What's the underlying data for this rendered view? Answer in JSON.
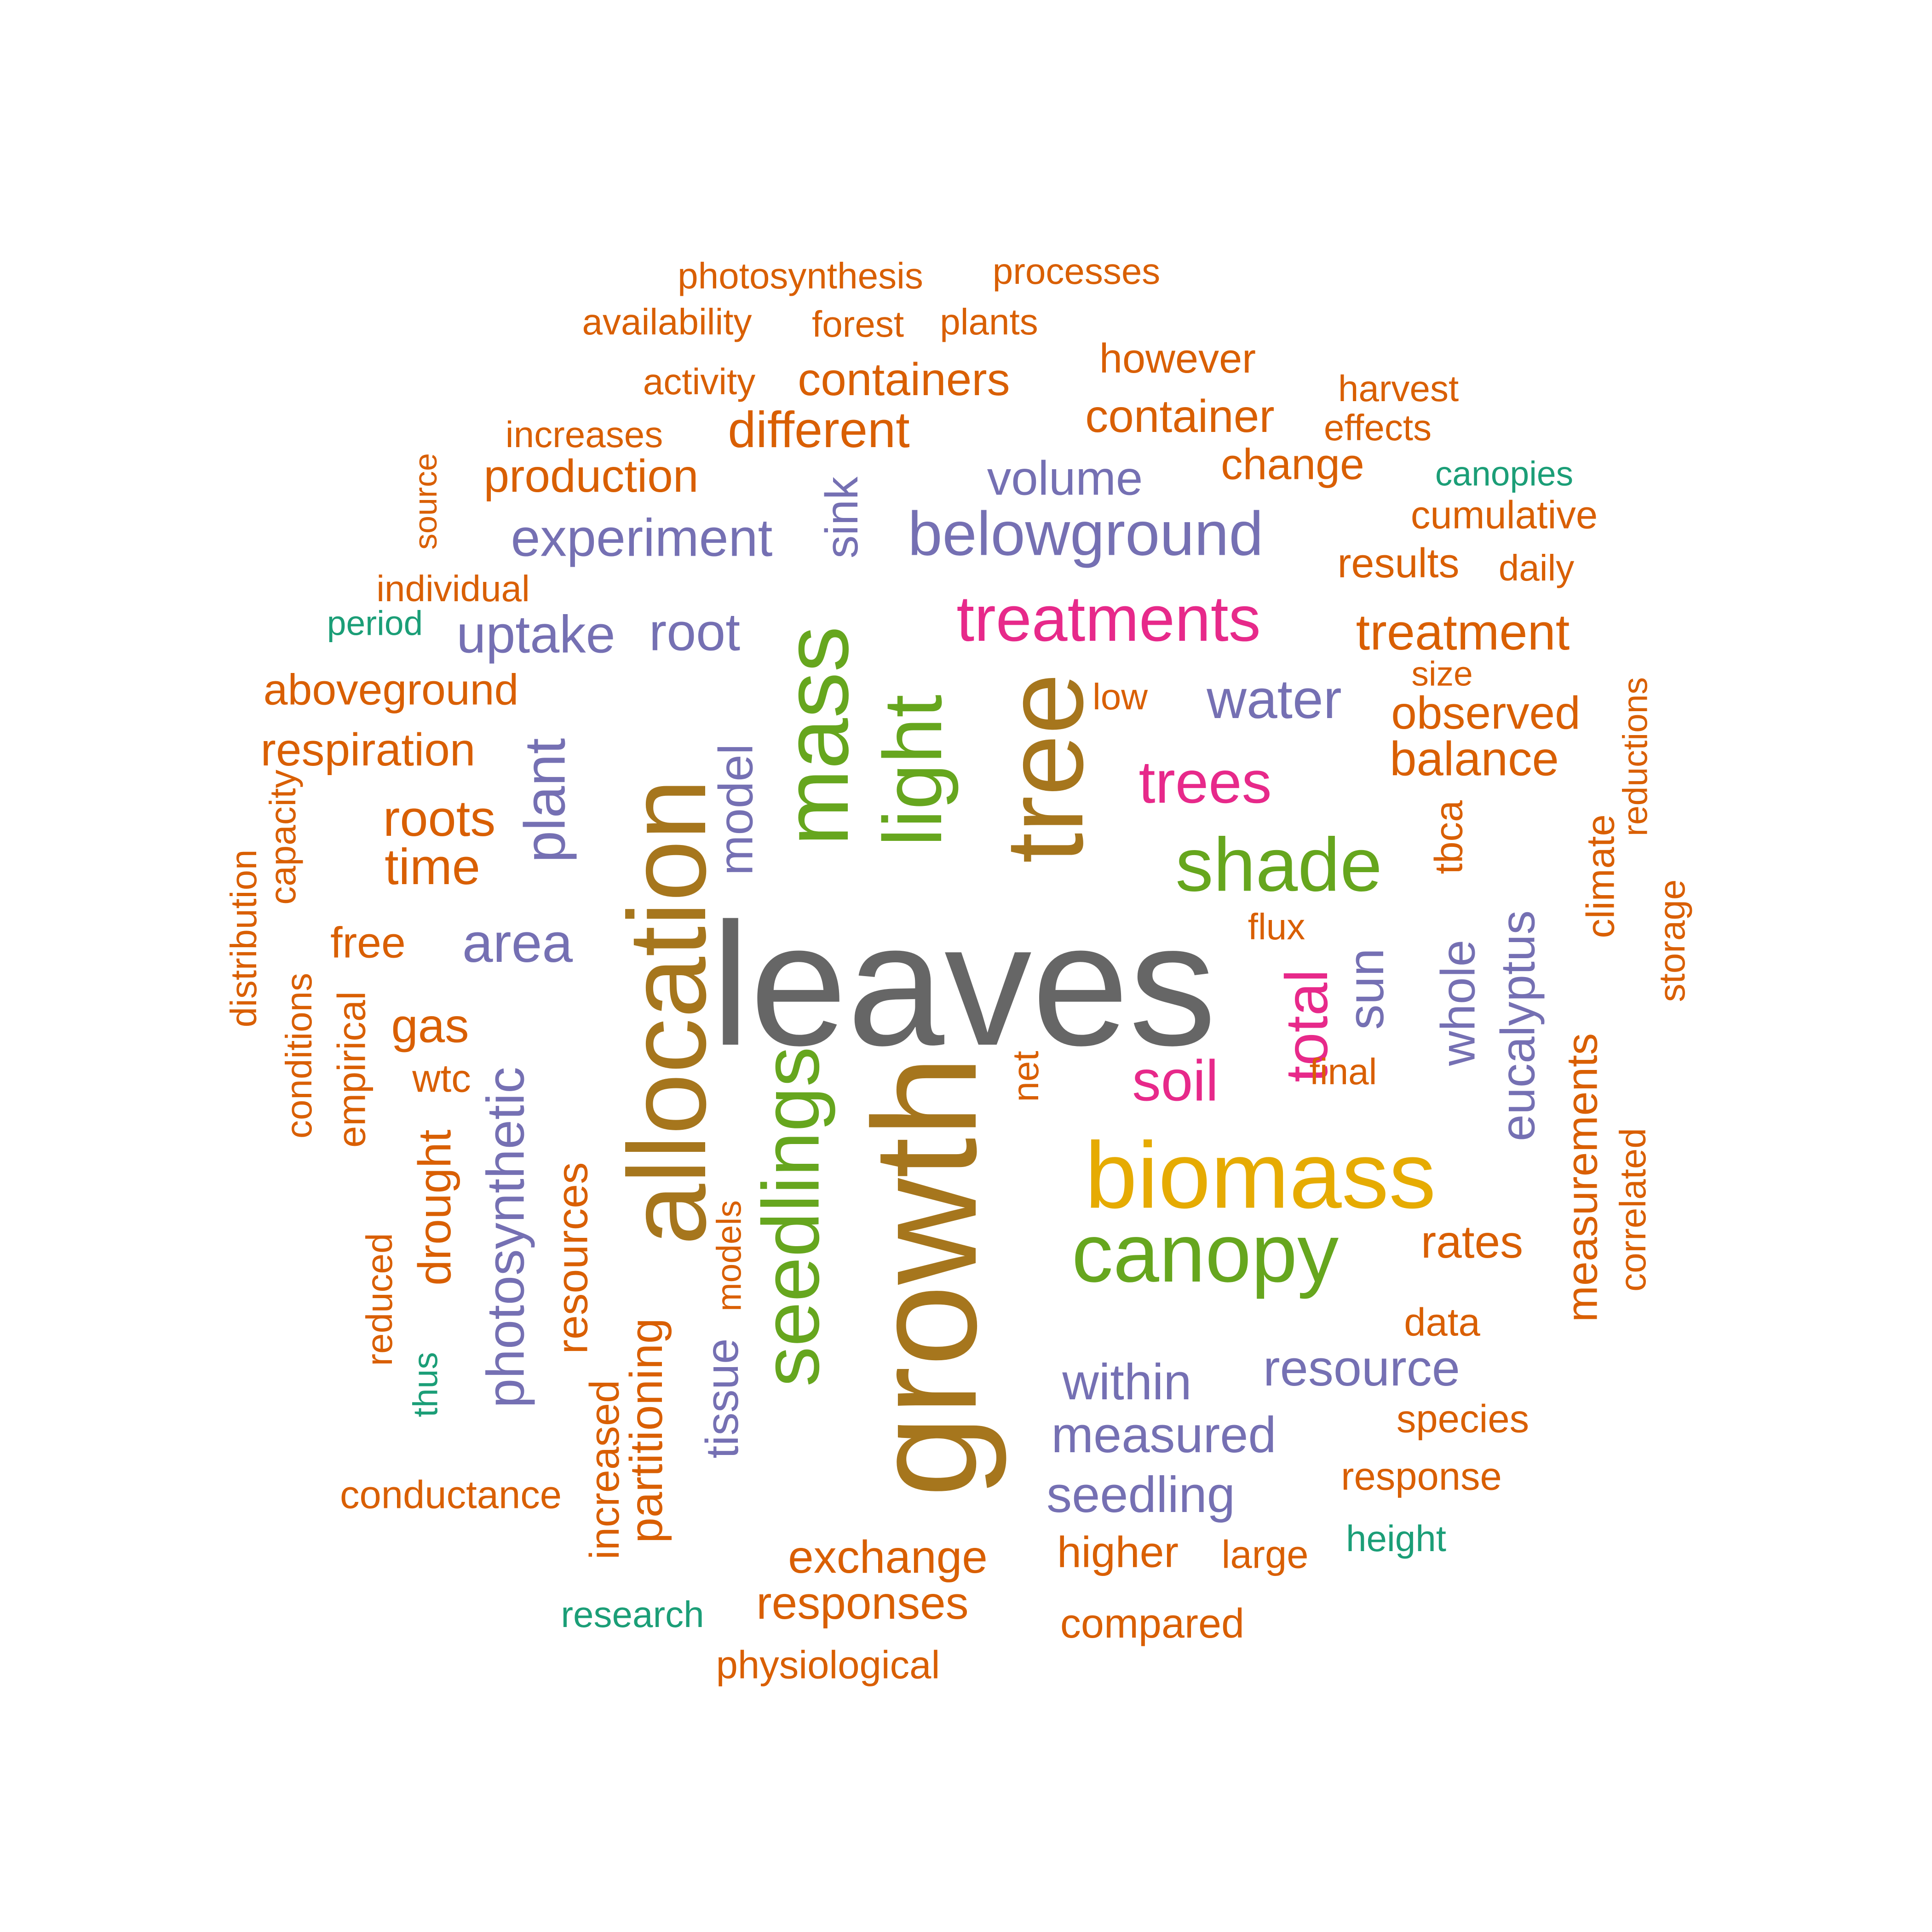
{
  "palette": {
    "gray": "#666666",
    "olive": "#A6761D",
    "green": "#66A61E",
    "gold": "#E6AB02",
    "pink": "#E7298A",
    "purple": "#7570B3",
    "orange": "#D95F02",
    "teal": "#1B9E77"
  },
  "words": [
    {
      "text": "leaves",
      "color": "gray"
    },
    {
      "text": "growth",
      "color": "olive"
    },
    {
      "text": "allocation",
      "color": "olive"
    },
    {
      "text": "tree",
      "color": "olive"
    },
    {
      "text": "mass",
      "color": "green"
    },
    {
      "text": "light",
      "color": "green"
    },
    {
      "text": "seedlings",
      "color": "green"
    },
    {
      "text": "biomass",
      "color": "gold"
    },
    {
      "text": "canopy",
      "color": "green"
    },
    {
      "text": "shade",
      "color": "green"
    },
    {
      "text": "treatments",
      "color": "pink"
    },
    {
      "text": "trees",
      "color": "pink"
    },
    {
      "text": "soil",
      "color": "pink"
    },
    {
      "text": "total",
      "color": "pink"
    },
    {
      "text": "belowground",
      "color": "purple"
    },
    {
      "text": "experiment",
      "color": "purple"
    },
    {
      "text": "uptake",
      "color": "purple"
    },
    {
      "text": "root",
      "color": "purple"
    },
    {
      "text": "water",
      "color": "purple"
    },
    {
      "text": "volume",
      "color": "purple"
    },
    {
      "text": "sink",
      "color": "purple"
    },
    {
      "text": "plant",
      "color": "purple"
    },
    {
      "text": "area",
      "color": "purple"
    },
    {
      "text": "photosynthetic",
      "color": "purple"
    },
    {
      "text": "model",
      "color": "purple"
    },
    {
      "text": "tissue",
      "color": "purple"
    },
    {
      "text": "sun",
      "color": "purple"
    },
    {
      "text": "whole",
      "color": "purple"
    },
    {
      "text": "eucalyptus",
      "color": "purple"
    },
    {
      "text": "within",
      "color": "purple"
    },
    {
      "text": "resource",
      "color": "purple"
    },
    {
      "text": "measured",
      "color": "purple"
    },
    {
      "text": "seedling",
      "color": "purple"
    },
    {
      "text": "photosynthesis",
      "color": "orange"
    },
    {
      "text": "processes",
      "color": "orange"
    },
    {
      "text": "availability",
      "color": "orange"
    },
    {
      "text": "forest",
      "color": "orange"
    },
    {
      "text": "plants",
      "color": "orange"
    },
    {
      "text": "activity",
      "color": "orange"
    },
    {
      "text": "containers",
      "color": "orange"
    },
    {
      "text": "however",
      "color": "orange"
    },
    {
      "text": "harvest",
      "color": "orange"
    },
    {
      "text": "increases",
      "color": "orange"
    },
    {
      "text": "different",
      "color": "orange"
    },
    {
      "text": "container",
      "color": "orange"
    },
    {
      "text": "effects",
      "color": "orange"
    },
    {
      "text": "production",
      "color": "orange"
    },
    {
      "text": "change",
      "color": "orange"
    },
    {
      "text": "canopies",
      "color": "teal"
    },
    {
      "text": "source",
      "color": "orange"
    },
    {
      "text": "cumulative",
      "color": "orange"
    },
    {
      "text": "results",
      "color": "orange"
    },
    {
      "text": "daily",
      "color": "orange"
    },
    {
      "text": "individual",
      "color": "orange"
    },
    {
      "text": "period",
      "color": "teal"
    },
    {
      "text": "treatment",
      "color": "orange"
    },
    {
      "text": "aboveground",
      "color": "orange"
    },
    {
      "text": "size",
      "color": "orange"
    },
    {
      "text": "low",
      "color": "orange"
    },
    {
      "text": "observed",
      "color": "orange"
    },
    {
      "text": "respiration",
      "color": "orange"
    },
    {
      "text": "balance",
      "color": "orange"
    },
    {
      "text": "reductions",
      "color": "orange"
    },
    {
      "text": "capacity",
      "color": "orange"
    },
    {
      "text": "roots",
      "color": "orange"
    },
    {
      "text": "tbca",
      "color": "orange"
    },
    {
      "text": "climate",
      "color": "orange"
    },
    {
      "text": "distribution",
      "color": "orange"
    },
    {
      "text": "time",
      "color": "orange"
    },
    {
      "text": "storage",
      "color": "orange"
    },
    {
      "text": "flux",
      "color": "orange"
    },
    {
      "text": "free",
      "color": "orange"
    },
    {
      "text": "conditions",
      "color": "orange"
    },
    {
      "text": "empirical",
      "color": "orange"
    },
    {
      "text": "gas",
      "color": "orange"
    },
    {
      "text": "measurements",
      "color": "orange"
    },
    {
      "text": "wtc",
      "color": "orange"
    },
    {
      "text": "net",
      "color": "orange"
    },
    {
      "text": "final",
      "color": "orange"
    },
    {
      "text": "correlated",
      "color": "orange"
    },
    {
      "text": "drought",
      "color": "orange"
    },
    {
      "text": "resources",
      "color": "orange"
    },
    {
      "text": "reduced",
      "color": "orange"
    },
    {
      "text": "models",
      "color": "orange"
    },
    {
      "text": "rates",
      "color": "orange"
    },
    {
      "text": "partitioning",
      "color": "orange"
    },
    {
      "text": "data",
      "color": "orange"
    },
    {
      "text": "thus",
      "color": "teal"
    },
    {
      "text": "increased",
      "color": "orange"
    },
    {
      "text": "species",
      "color": "orange"
    },
    {
      "text": "conductance",
      "color": "orange"
    },
    {
      "text": "response",
      "color": "orange"
    },
    {
      "text": "exchange",
      "color": "orange"
    },
    {
      "text": "higher",
      "color": "orange"
    },
    {
      "text": "large",
      "color": "orange"
    },
    {
      "text": "height",
      "color": "teal"
    },
    {
      "text": "research",
      "color": "teal"
    },
    {
      "text": "responses",
      "color": "orange"
    },
    {
      "text": "compared",
      "color": "orange"
    },
    {
      "text": "physiological",
      "color": "orange"
    }
  ]
}
